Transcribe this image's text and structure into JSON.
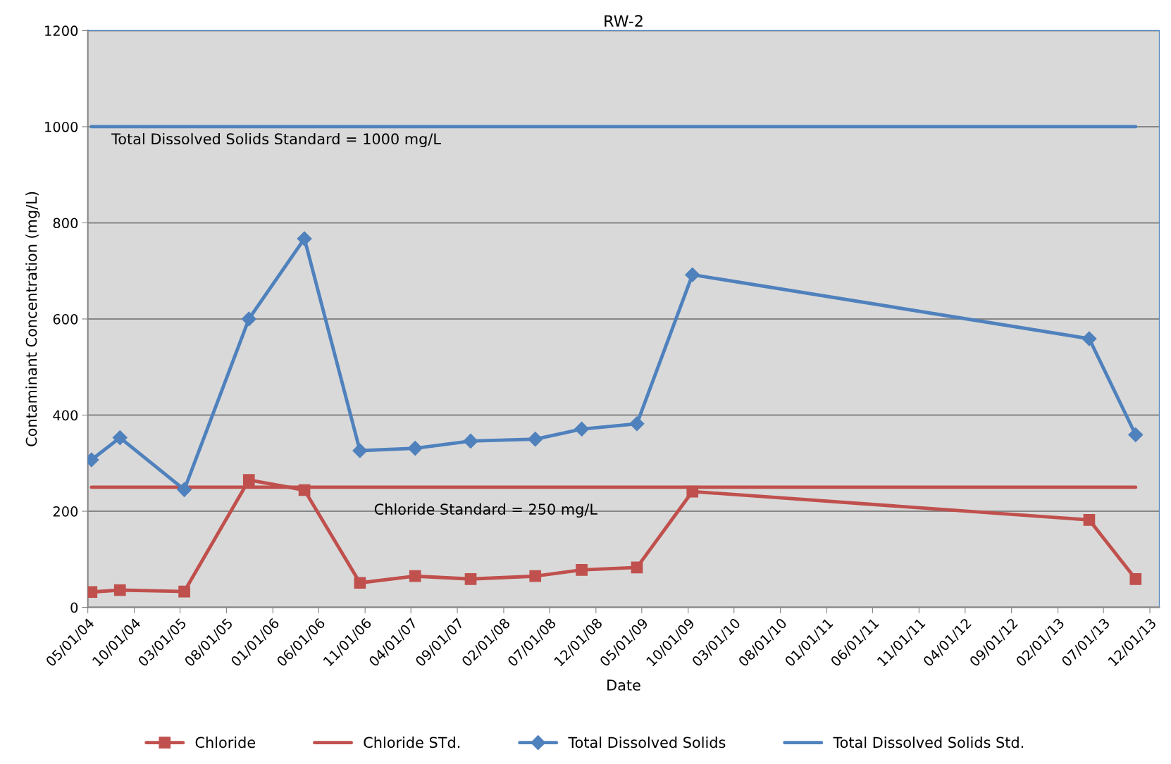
{
  "chart_data": {
    "type": "line",
    "title": "RW-2",
    "xlabel": "Date",
    "ylabel": "Contaminant Concentration (mg/L)",
    "x": [
      "2004-05-13",
      "2004-08-15",
      "2005-03-15",
      "2005-10-14",
      "2006-04-15",
      "2006-10-15",
      "2007-04-15",
      "2007-10-15",
      "2008-05-15",
      "2008-10-15",
      "2009-04-15",
      "2009-10-15",
      "2013-05-15",
      "2013-10-15"
    ],
    "series": [
      {
        "name": "Chloride",
        "color": "#c0504d",
        "marker": "square",
        "values": [
          32,
          36,
          33,
          265,
          244,
          51,
          65,
          59,
          65,
          78,
          83,
          241,
          182,
          59
        ]
      },
      {
        "name": "Chloride STd.",
        "color": "#c0504d",
        "marker": "none",
        "x": [
          "2004-05-13",
          "2013-10-15"
        ],
        "values": [
          250,
          250
        ]
      },
      {
        "name": "Total Dissolved Solids",
        "color": "#4f81bd",
        "marker": "diamond",
        "values": [
          307,
          353,
          245,
          600,
          767,
          326,
          331,
          346,
          350,
          371,
          382,
          692,
          559,
          359
        ]
      },
      {
        "name": "Total Dissolved Solids Std.",
        "color": "#4f81bd",
        "marker": "none",
        "x": [
          "2004-05-13",
          "2013-10-15"
        ],
        "values": [
          1000,
          1000
        ]
      }
    ],
    "annotations": [
      "Total Dissolved Solids Standard = 1000 mg/L",
      "Chloride Standard = 250 mg/L"
    ],
    "xlim": [
      "2004-05-01",
      "2014-01-01"
    ],
    "xticks": [
      {
        "value": "2004-05-01",
        "label": "05/01/04"
      },
      {
        "value": "2004-10-01",
        "label": "10/01/04"
      },
      {
        "value": "2005-03-01",
        "label": "03/01/05"
      },
      {
        "value": "2005-08-01",
        "label": "08/01/05"
      },
      {
        "value": "2006-01-01",
        "label": "01/01/06"
      },
      {
        "value": "2006-06-01",
        "label": "06/01/06"
      },
      {
        "value": "2006-11-01",
        "label": "11/01/06"
      },
      {
        "value": "2007-04-01",
        "label": "04/01/07"
      },
      {
        "value": "2007-09-01",
        "label": "09/01/07"
      },
      {
        "value": "2008-02-01",
        "label": "02/01/08"
      },
      {
        "value": "2008-07-01",
        "label": "07/01/08"
      },
      {
        "value": "2008-12-01",
        "label": "12/01/08"
      },
      {
        "value": "2009-05-01",
        "label": "05/01/09"
      },
      {
        "value": "2009-10-01",
        "label": "10/01/09"
      },
      {
        "value": "2010-03-01",
        "label": "03/01/10"
      },
      {
        "value": "2010-08-01",
        "label": "08/01/10"
      },
      {
        "value": "2011-01-01",
        "label": "01/01/11"
      },
      {
        "value": "2011-06-01",
        "label": "06/01/11"
      },
      {
        "value": "2011-11-01",
        "label": "11/01/11"
      },
      {
        "value": "2012-04-01",
        "label": "04/01/12"
      },
      {
        "value": "2012-09-01",
        "label": "09/01/12"
      },
      {
        "value": "2013-02-01",
        "label": "02/01/13"
      },
      {
        "value": "2013-07-01",
        "label": "07/01/13"
      },
      {
        "value": "2013-12-01",
        "label": "12/01/13"
      }
    ],
    "ylim": [
      0,
      1200
    ],
    "yticks": [
      0,
      200,
      400,
      600,
      800,
      1000,
      1200
    ],
    "grid": "y",
    "legend": "bottom",
    "line_style": "solid"
  }
}
